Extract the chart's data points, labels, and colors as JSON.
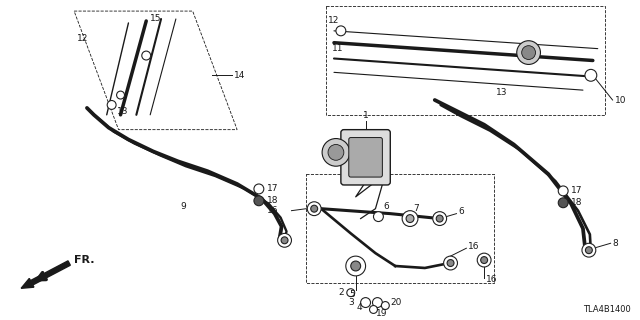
{
  "bg_color": "#ffffff",
  "diagram_id": "TLA4B1400",
  "line_color": "#1a1a1a"
}
